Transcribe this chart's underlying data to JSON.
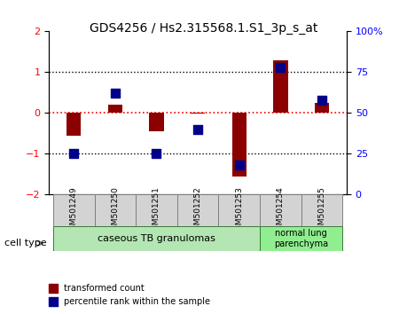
{
  "title": "GDS4256 / Hs2.315568.1.S1_3p_s_at",
  "samples": [
    "GSM501249",
    "GSM501250",
    "GSM501251",
    "GSM501252",
    "GSM501253",
    "GSM501254",
    "GSM501255"
  ],
  "transformed_count": [
    -0.55,
    0.2,
    -0.45,
    -0.02,
    -1.55,
    1.3,
    0.25
  ],
  "percentile_rank": [
    25,
    62,
    25,
    40,
    18,
    78,
    58
  ],
  "ylim_left": [
    -2,
    2
  ],
  "ylim_right": [
    0,
    100
  ],
  "yticks_left": [
    -2,
    -1,
    0,
    1,
    2
  ],
  "yticks_right": [
    0,
    25,
    50,
    75,
    100
  ],
  "ytick_labels_right": [
    "0",
    "25",
    "50",
    "75",
    "100%"
  ],
  "bar_color": "#8B0000",
  "square_color": "#00008B",
  "dotted_line_color": "#8B0000",
  "dotted_line_y": [
    0,
    1,
    -1
  ],
  "group1_samples": [
    0,
    1,
    2,
    3,
    4
  ],
  "group2_samples": [
    5,
    6
  ],
  "group1_label": "caseous TB granulomas",
  "group2_label": "normal lung\nparenchyma",
  "group1_color": "#b3e6b3",
  "group2_color": "#90ee90",
  "cell_type_label": "cell type",
  "legend1_label": "transformed count",
  "legend2_label": "percentile rank within the sample",
  "bar_width": 0.35,
  "square_size": 60
}
